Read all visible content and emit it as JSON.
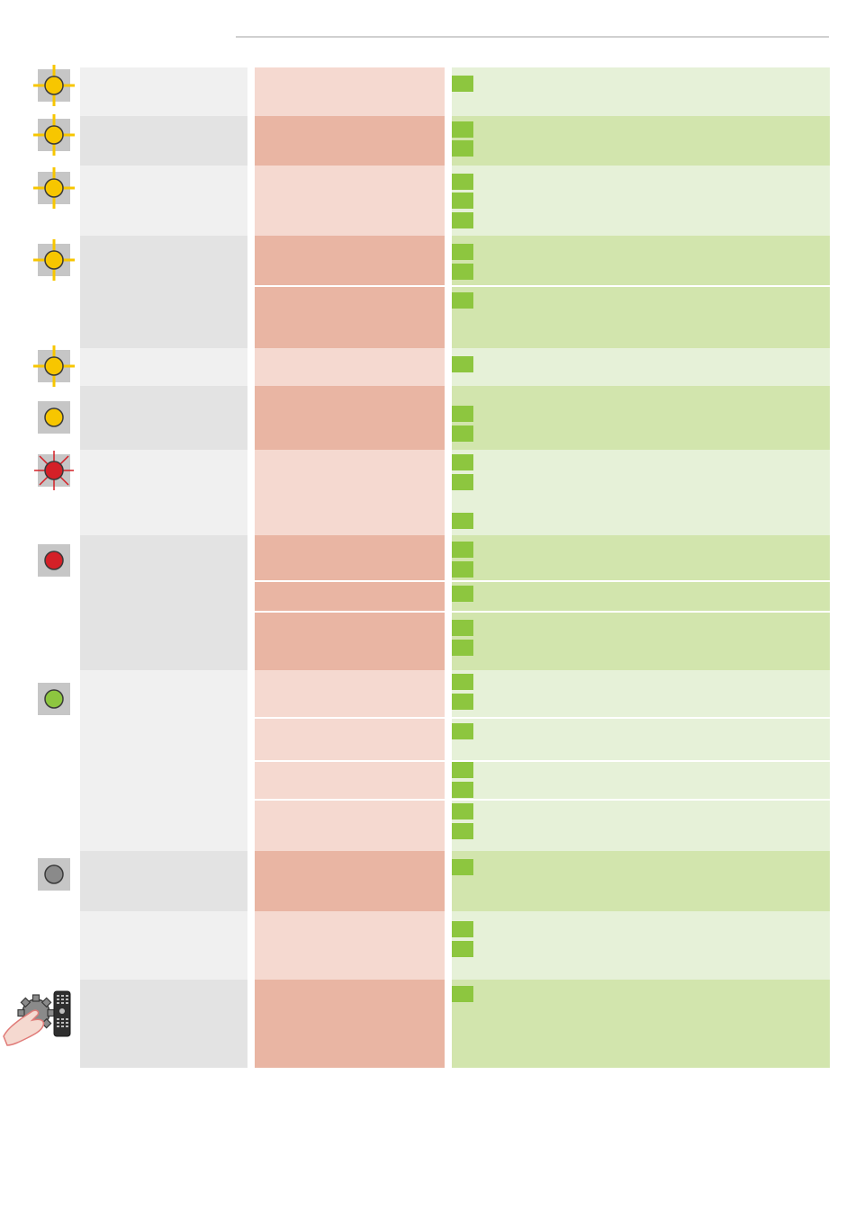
{
  "page": {
    "header_rule": "header-rule"
  },
  "legend": {
    "indicators": [
      {
        "icon": "yellow-blinking-led-icon",
        "color": "#f7c600"
      },
      {
        "icon": "yellow-blinking-led-icon",
        "color": "#f7c600"
      },
      {
        "icon": "yellow-blinking-led-icon",
        "color": "#f7c600"
      },
      {
        "icon": "yellow-blinking-led-icon",
        "color": "#f7c600"
      },
      {
        "icon": "yellow-blinking-led-icon",
        "color": "#f7c600"
      },
      {
        "icon": "yellow-steady-led-icon",
        "color": "#f7c600"
      },
      {
        "icon": "red-blinking-led-icon",
        "color": "#d42027"
      },
      {
        "icon": "red-steady-led-icon",
        "color": "#d42027"
      },
      {
        "icon": "green-steady-led-icon",
        "color": "#8dc63f"
      },
      {
        "icon": "grey-off-led-icon",
        "color": "#8a8a8a"
      },
      {
        "icon": "settings-remote-hand-icon",
        "color": "#8a8a8a"
      }
    ]
  },
  "colors": {
    "column1_light": "#f0f0f0",
    "column1_dark": "#e3e3e3",
    "column2_light": "#f5d9d0",
    "column2_dark": "#e9b5a3",
    "column3_light": "#e6f1d8",
    "column3_dark": "#d2e5ad",
    "bullet": "#8dc63f"
  }
}
